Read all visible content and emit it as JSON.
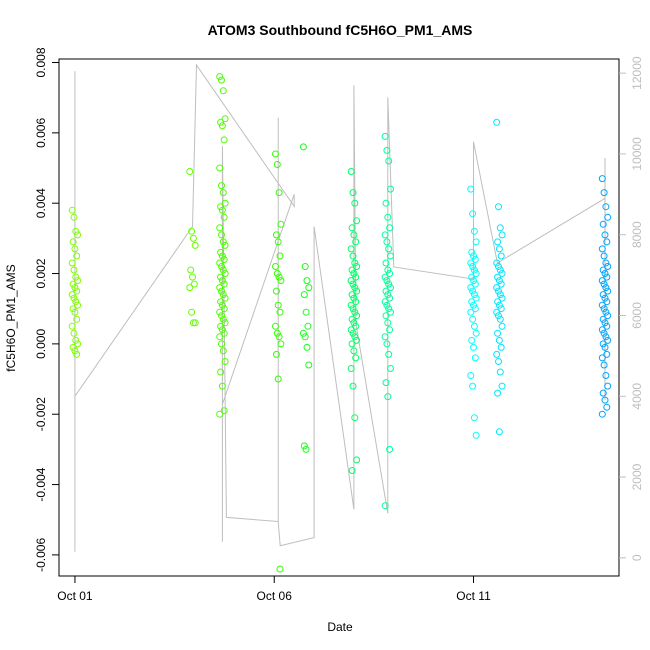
{
  "chart_data": {
    "type": "scatter",
    "title": "ATOM3 Southbound fC5H6O_PM1_AMS",
    "xlabel": "Date",
    "ylabel": "fC5H6O_PM1_AMS",
    "x_ticks": [
      "Oct 01",
      "Oct 06",
      "Oct 11"
    ],
    "y_ticks": [
      "-0.006",
      "-0.004",
      "-0.002",
      "0.000",
      "0.002",
      "0.004",
      "0.006",
      "0.008"
    ],
    "y2_ticks": [
      "0",
      "2000",
      "4000",
      "6000",
      "8000",
      "10000",
      "12000"
    ],
    "ylim": [
      -0.0066,
      0.0081
    ],
    "y2lim": [
      -450,
      12350
    ],
    "xlim_days": [
      0.6,
      14.65
    ],
    "secondary_series_color": "#bebebe",
    "marker": "open-circle",
    "grid": false,
    "clusters": [
      {
        "day": 1.0,
        "color": "#80ff00",
        "y": [
          0.0038,
          0.0036,
          0.0032,
          0.0031,
          0.0029,
          0.0027,
          0.0025,
          0.0023,
          0.0021,
          0.0019,
          0.0018,
          0.0017,
          0.0016,
          0.0015,
          0.0014,
          0.0013,
          0.0012,
          0.0011,
          0.001,
          0.0009,
          0.0007,
          0.0005,
          0.0003,
          0.0001,
          0.0,
          -0.0001,
          -0.0002,
          -0.0003
        ]
      },
      {
        "day": 3.95,
        "color": "#66ff00",
        "y": [
          0.0049,
          0.0032,
          0.003,
          0.0028,
          0.0021,
          0.0019,
          0.0017,
          0.0016,
          0.0009,
          0.0006,
          0.0006
        ]
      },
      {
        "day": 4.7,
        "color": "#4dff00",
        "y": [
          0.0076,
          0.0075,
          0.0072,
          0.0064,
          0.0063,
          0.0062,
          0.0058,
          0.005,
          0.0045,
          0.0043,
          0.004,
          0.0039,
          0.0038,
          0.0036,
          0.0033,
          0.0031,
          0.0029,
          0.0028,
          0.0026,
          0.0025,
          0.0024,
          0.0023,
          0.0022,
          0.0021,
          0.002,
          0.0019,
          0.0018,
          0.0017,
          0.0016,
          0.0015,
          0.0014,
          0.0013,
          0.0012,
          0.0011,
          0.001,
          0.0009,
          0.0008,
          0.0007,
          0.0006,
          0.0005,
          0.0004,
          0.0003,
          0.0002,
          0.0,
          -0.0002,
          -0.0005,
          -0.0008,
          -0.0012,
          -0.0019,
          -0.002
        ]
      },
      {
        "day": 6.1,
        "color": "#33ff00",
        "y": [
          0.0054,
          0.0051,
          0.0043,
          0.0034,
          0.0031,
          0.0029,
          0.0025,
          0.0022,
          0.002,
          0.0019,
          0.0018,
          0.0015,
          0.0011,
          0.0009,
          0.0005,
          0.0003,
          0.0002,
          0.0,
          -0.0003,
          -0.001,
          -0.0064
        ]
      },
      {
        "day": 6.8,
        "color": "#1aff1a",
        "y": [
          0.0056,
          0.0022,
          0.0018,
          0.0016,
          0.0014,
          0.0009,
          0.0005,
          0.0003,
          0.0002,
          -0.0001,
          -0.0006,
          -0.0029,
          -0.003
        ]
      },
      {
        "day": 8.0,
        "color": "#00ff66",
        "y": [
          0.0049,
          0.0043,
          0.004,
          0.0035,
          0.0033,
          0.0031,
          0.0029,
          0.0027,
          0.0025,
          0.0023,
          0.0022,
          0.0021,
          0.002,
          0.0019,
          0.0018,
          0.0017,
          0.0016,
          0.0015,
          0.0014,
          0.0013,
          0.0012,
          0.0011,
          0.001,
          0.0009,
          0.0008,
          0.0007,
          0.0006,
          0.0005,
          0.0004,
          0.0003,
          0.0002,
          0.0001,
          0.0,
          -0.0002,
          -0.0004,
          -0.0007,
          -0.0012,
          -0.0021,
          -0.0033,
          -0.0036
        ]
      },
      {
        "day": 8.85,
        "color": "#00ff99",
        "y": [
          0.0059,
          0.0055,
          0.0052,
          0.0044,
          0.004,
          0.0036,
          0.0033,
          0.0031,
          0.0029,
          0.0027,
          0.0025,
          0.0023,
          0.0021,
          0.002,
          0.0019,
          0.0018,
          0.0017,
          0.0016,
          0.0015,
          0.0014,
          0.0013,
          0.0012,
          0.0011,
          0.001,
          0.0009,
          0.0008,
          0.0006,
          0.0004,
          0.0002,
          0.0,
          -0.0003,
          -0.0007,
          -0.0011,
          -0.0015,
          -0.003,
          -0.0046
        ]
      },
      {
        "day": 11.0,
        "color": "#00ffff",
        "y": [
          0.0044,
          0.0037,
          0.0032,
          0.0029,
          0.0026,
          0.0025,
          0.0024,
          0.0023,
          0.0022,
          0.0021,
          0.002,
          0.0019,
          0.0018,
          0.0017,
          0.0016,
          0.0015,
          0.0014,
          0.0013,
          0.0012,
          0.0011,
          0.001,
          0.0009,
          0.0007,
          0.0005,
          0.0003,
          0.0001,
          -0.0001,
          -0.0004,
          -0.0009,
          -0.0012,
          -0.0021,
          -0.0026
        ]
      },
      {
        "day": 11.65,
        "color": "#00e5ff",
        "y": [
          0.0063,
          0.0039,
          0.0033,
          0.0031,
          0.0029,
          0.0027,
          0.0025,
          0.0023,
          0.0022,
          0.0021,
          0.002,
          0.0019,
          0.0018,
          0.0017,
          0.0016,
          0.0015,
          0.0014,
          0.0013,
          0.0012,
          0.0011,
          0.001,
          0.0009,
          0.0008,
          0.0007,
          0.0005,
          0.0003,
          0.0001,
          -0.0001,
          -0.0003,
          -0.0005,
          -0.0008,
          -0.0012,
          -0.0014,
          -0.0025
        ]
      },
      {
        "day": 14.3,
        "color": "#00a5ff",
        "y": [
          0.0047,
          0.0043,
          0.0039,
          0.0036,
          0.0034,
          0.0031,
          0.0029,
          0.0027,
          0.0025,
          0.0023,
          0.0022,
          0.0021,
          0.002,
          0.0019,
          0.0018,
          0.0017,
          0.0016,
          0.0015,
          0.0014,
          0.0013,
          0.0012,
          0.0011,
          0.001,
          0.0009,
          0.0008,
          0.0007,
          0.0006,
          0.0005,
          0.0004,
          0.0003,
          0.0002,
          0.0001,
          0.0,
          -0.0001,
          -0.0003,
          -0.0004,
          -0.0006,
          -0.0009,
          -0.0012,
          -0.0014,
          -0.0016,
          -0.0018,
          -0.002
        ]
      }
    ],
    "secondary_path": [
      [
        1.0,
        3800
      ],
      [
        1.0,
        150
      ],
      [
        1.0,
        12050
      ],
      [
        1.0,
        4000
      ],
      [
        3.95,
        8200
      ],
      [
        4.05,
        12200
      ],
      [
        6.5,
        8700
      ],
      [
        6.5,
        9000
      ],
      [
        4.7,
        3800
      ],
      [
        4.7,
        400
      ],
      [
        4.7,
        10200
      ],
      [
        4.8,
        1000
      ],
      [
        6.1,
        900
      ],
      [
        6.1,
        10900
      ],
      [
        6.1,
        900
      ],
      [
        6.15,
        300
      ],
      [
        7.0,
        500
      ],
      [
        7.0,
        8200
      ],
      [
        8.0,
        1200
      ],
      [
        8.0,
        11700
      ],
      [
        8.05,
        5800
      ],
      [
        8.85,
        1100
      ],
      [
        8.85,
        11400
      ],
      [
        9.0,
        7200
      ],
      [
        11.0,
        6900
      ],
      [
        11.0,
        10300
      ],
      [
        11.6,
        7300
      ],
      [
        14.3,
        8900
      ],
      [
        14.3,
        9900
      ],
      [
        14.3,
        3900
      ]
    ]
  }
}
